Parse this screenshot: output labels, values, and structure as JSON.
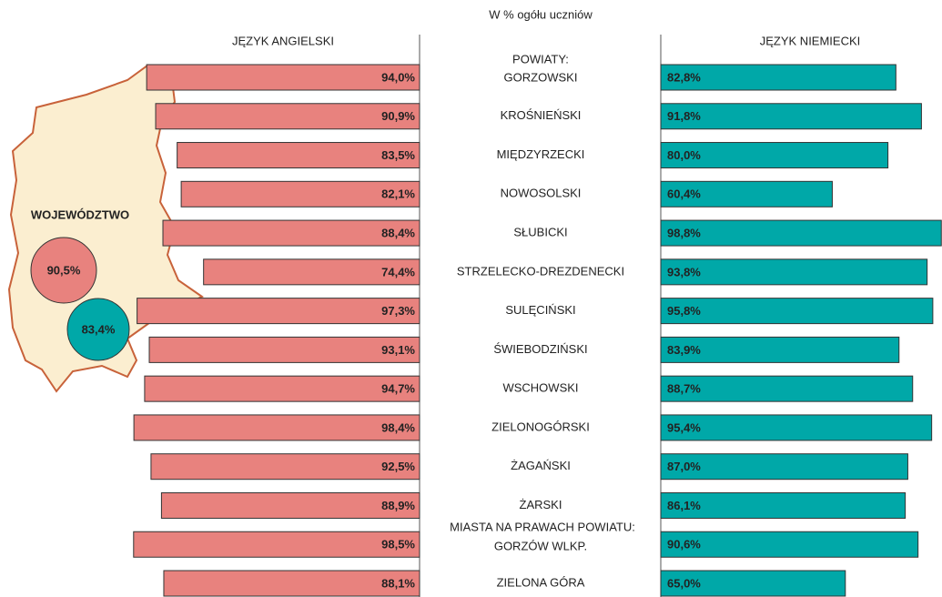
{
  "chart_data": {
    "type": "butterfly-bar",
    "title": "W % ogółu uczniów",
    "group_labels": [
      "POWIATY:",
      "MIASTA NA PRAWACH POWIATU:"
    ],
    "categories": [
      "GORZOWSKI",
      "KROŚNIEŃSKI",
      "MIĘDZYRZECKI",
      "NOWOSOLSKI",
      "SŁUBICKI",
      "STRZELECKO-DREZDENECKI",
      "SULĘCIŃSKI",
      "ŚWIEBODZIŃSKI",
      "WSCHOWSKI",
      "ZIELONOGÓRSKI",
      "ŻAGAŃSKI",
      "ŻARSKI",
      "GORZÓW WLKP.",
      "ZIELONA GÓRA"
    ],
    "xlim": [
      0,
      100
    ],
    "series": [
      {
        "name": "JĘZYK ANGIELSKI",
        "color": "#e8827e",
        "values": [
          94.0,
          90.9,
          83.5,
          82.1,
          88.4,
          74.4,
          97.3,
          93.1,
          94.7,
          98.4,
          92.5,
          88.9,
          98.5,
          88.1
        ],
        "value_labels": [
          "94,0%",
          "90,9%",
          "83,5%",
          "82,1%",
          "88,4%",
          "74,4%",
          "97,3%",
          "93,1%",
          "94,7%",
          "98,4%",
          "92,5%",
          "88,9%",
          "98,5%",
          "88,1%"
        ]
      },
      {
        "name": "JĘZYK NIEMIECKI",
        "color": "#00a8a8",
        "values": [
          82.8,
          91.8,
          80.0,
          60.4,
          98.8,
          93.8,
          95.8,
          83.9,
          88.7,
          95.4,
          87.0,
          86.1,
          90.6,
          65.0
        ],
        "value_labels": [
          "82,8%",
          "91,8%",
          "80,0%",
          "60,4%",
          "98,8%",
          "93,8%",
          "95,8%",
          "83,9%",
          "88,7%",
          "95,4%",
          "87,0%",
          "86,1%",
          "90,6%",
          "65,0%"
        ]
      }
    ],
    "inset": {
      "label": "WOJEWÓDZTWO",
      "values": [
        90.5,
        83.4
      ],
      "value_labels": [
        "90,5%",
        "83,4%"
      ]
    }
  }
}
